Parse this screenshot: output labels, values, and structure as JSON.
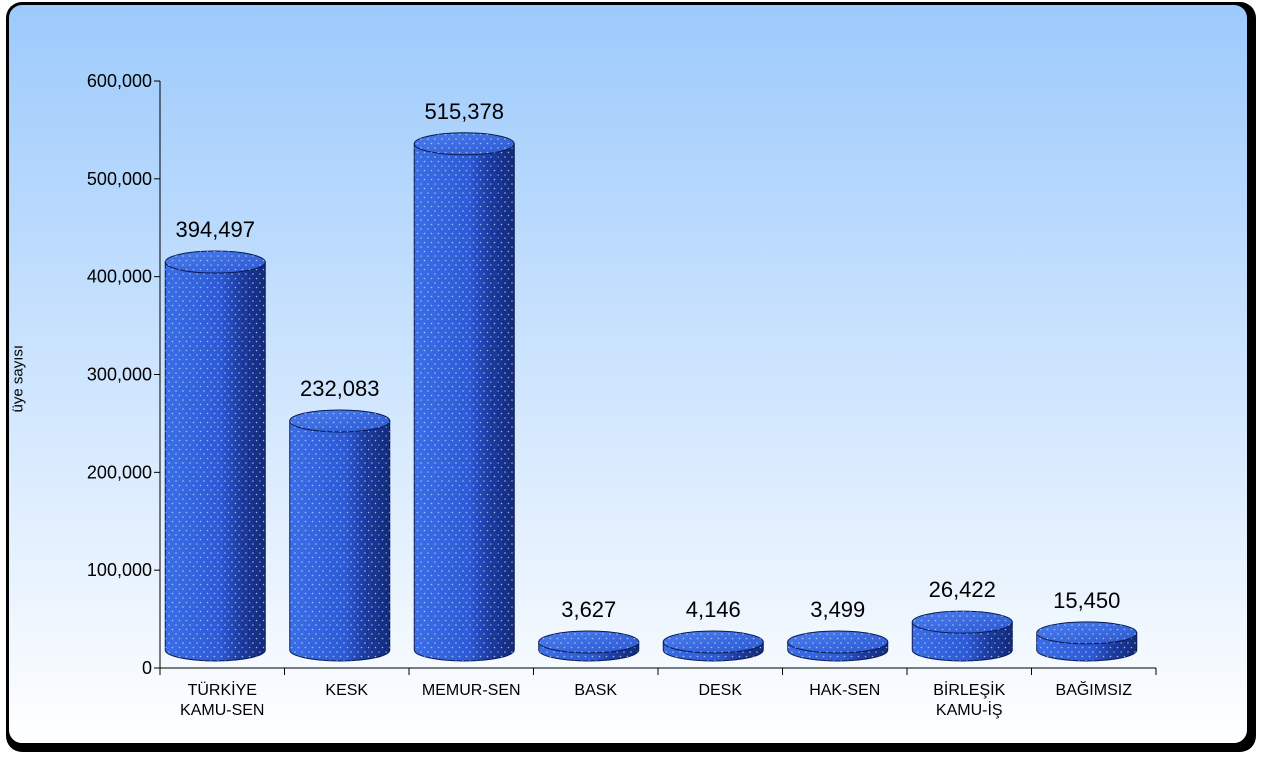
{
  "chart_data": {
    "type": "bar",
    "style": "3d-cylinder",
    "xlabel": "",
    "ylabel": "üye sayısı",
    "ylim": [
      0,
      600000
    ],
    "yticks": [
      "0",
      "100,000",
      "200,000",
      "300,000",
      "400,000",
      "500,000",
      "600,000"
    ],
    "yticks_values": [
      0,
      100000,
      200000,
      300000,
      400000,
      500000,
      600000
    ],
    "categories": [
      [
        "TÜRKİYE",
        "KAMU-SEN"
      ],
      [
        "KESK"
      ],
      [
        "MEMUR-SEN"
      ],
      [
        "BASK"
      ],
      [
        "DESK"
      ],
      [
        "HAK-SEN"
      ],
      [
        "BİRLEŞİK",
        "KAMU-İŞ"
      ],
      [
        "BAĞIMSIZ"
      ]
    ],
    "values": [
      394497,
      232083,
      515378,
      3627,
      4146,
      3499,
      26422,
      15450
    ],
    "value_labels": [
      "394,497",
      "232,083",
      "515,378",
      "3,627",
      "4,146",
      "3,499",
      "26,422",
      "15,450"
    ],
    "grid": false,
    "legend": "none",
    "colors": {
      "bar": "#3366dd",
      "bar_dark": "#1a3a99",
      "background_top": "#9ccafc",
      "background_bottom": "#ffffff",
      "border": "#000000"
    }
  }
}
